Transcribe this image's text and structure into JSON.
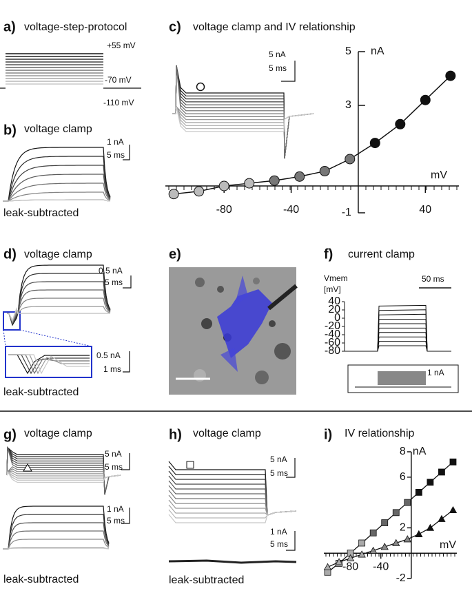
{
  "a": {
    "letter": "a)",
    "title": "voltage-step-protocol",
    "labels": [
      "+55 mV",
      "-70 mV",
      "-110 mV"
    ]
  },
  "b": {
    "letter": "b)",
    "title": "voltage clamp",
    "scale_y": "1 nA",
    "scale_x": "5 ms",
    "note": "leak-subtracted"
  },
  "c": {
    "letter": "c)",
    "title": "voltage clamp and IV relationship",
    "scale_y": "5 nA",
    "scale_x": "5 ms",
    "chart": {
      "type": "scatter",
      "x_label": "mV",
      "y_label": "nA",
      "x": [
        -110,
        -95,
        -80,
        -65,
        -50,
        -35,
        -20,
        -5,
        10,
        25,
        40,
        55
      ],
      "values": [
        -0.3,
        -0.2,
        0.0,
        0.1,
        0.2,
        0.35,
        0.55,
        1.0,
        1.6,
        2.3,
        3.2,
        4.1
      ],
      "colors": [
        "#bbb",
        "#bbb",
        "#bbb",
        "#bbb",
        "#777",
        "#777",
        "#777",
        "#777",
        "#111",
        "#111",
        "#111",
        "#111"
      ],
      "xlim": [
        -115,
        60
      ],
      "ylim": [
        -1,
        5
      ],
      "xticks": [
        -80,
        -40,
        40
      ],
      "yticks": [
        5,
        3,
        -1
      ]
    }
  },
  "d": {
    "letter": "d)",
    "title": "voltage clamp",
    "scale_y": "0.5 nA",
    "scale_x": "5 ms",
    "inset_scale_y": "0.5 nA",
    "inset_scale_x": "1 ms",
    "note": "leak-subtracted"
  },
  "e": {
    "letter": "e)"
  },
  "f": {
    "letter": "f)",
    "title": "current clamp",
    "y_label": "Vmem",
    "y_unit": "[mV]",
    "scale_x": "50 ms",
    "ylim": [
      -80,
      40
    ],
    "yticks": [
      40,
      20,
      0,
      -20,
      -40,
      -60,
      -80
    ],
    "stim_label": "1 nA"
  },
  "g": {
    "letter": "g)",
    "title": "voltage clamp",
    "scale_y": "5 nA",
    "scale_x": "5 ms",
    "scale2_y": "1 nA",
    "scale2_x": "5 ms",
    "note": "leak-subtracted"
  },
  "h": {
    "letter": "h)",
    "title": "voltage clamp",
    "scale_y": "5 nA",
    "scale_x": "5 ms",
    "scale2_y": "1 nA",
    "scale2_x": "5 ms",
    "note": "leak-subtracted"
  },
  "i": {
    "letter": "i)",
    "title": "IV relationship",
    "chart": {
      "type": "line",
      "x_label": "mV",
      "y_label": "nA",
      "x": [
        -110,
        -95,
        -80,
        -65,
        -50,
        -35,
        -20,
        -5,
        10,
        25,
        40,
        55
      ],
      "series": [
        {
          "marker": "square",
          "colors": [
            "#aaa",
            "#aaa",
            "#aaa",
            "#aaa",
            "#666",
            "#666",
            "#666",
            "#666",
            "#111",
            "#111",
            "#111",
            "#111"
          ],
          "values": [
            -1.5,
            -0.8,
            0,
            0.8,
            1.6,
            2.4,
            3.2,
            4.0,
            4.8,
            5.6,
            6.4,
            7.2
          ]
        },
        {
          "marker": "triangle",
          "colors": [
            "#aaa",
            "#aaa",
            "#aaa",
            "#aaa",
            "#888",
            "#888",
            "#888",
            "#888",
            "#111",
            "#111",
            "#111",
            "#111"
          ],
          "values": [
            -1.1,
            -0.7,
            -0.4,
            -0.1,
            0.2,
            0.5,
            0.8,
            1.1,
            1.5,
            2.0,
            2.7,
            3.4
          ]
        }
      ],
      "xlim": [
        -115,
        60
      ],
      "ylim": [
        -2,
        8
      ],
      "xticks": [
        -80,
        -40
      ],
      "yticks": [
        8,
        6,
        2,
        -2
      ]
    }
  }
}
